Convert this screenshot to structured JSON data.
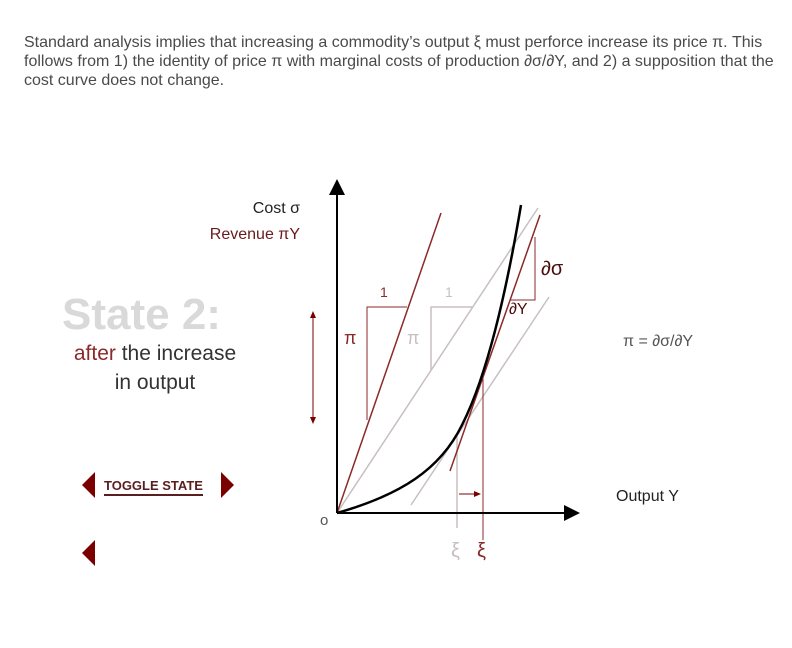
{
  "intro": "Standard analysis implies that increasing a commodity’s output ξ must perforce increase its price π. This follows from 1) the identity of price π with marginal costs of production ∂σ/∂Y, and 2) a supposition that the cost curve does not change.",
  "state": {
    "title": "State 2:",
    "line1_red": "after",
    "line1_rest": " the increase",
    "line2": "in output"
  },
  "axes": {
    "y_label1": "Cost σ",
    "y_label2": "Revenue πY",
    "x_label": "Output Y",
    "origin": "o"
  },
  "labels": {
    "one_red": "1",
    "one_gray": "1",
    "pi_red": "π",
    "pi_gray": "π",
    "dsigma": "∂σ",
    "dY": "∂Y",
    "xi_gray": "ξ",
    "xi_red": "ξ"
  },
  "equation": "π = ∂σ/∂Y",
  "toggle": "TOGGLE STATE",
  "colors": {
    "accent": "#7a0000",
    "line_red": "#8b2a2a",
    "line_gray": "#c9bfbf"
  }
}
